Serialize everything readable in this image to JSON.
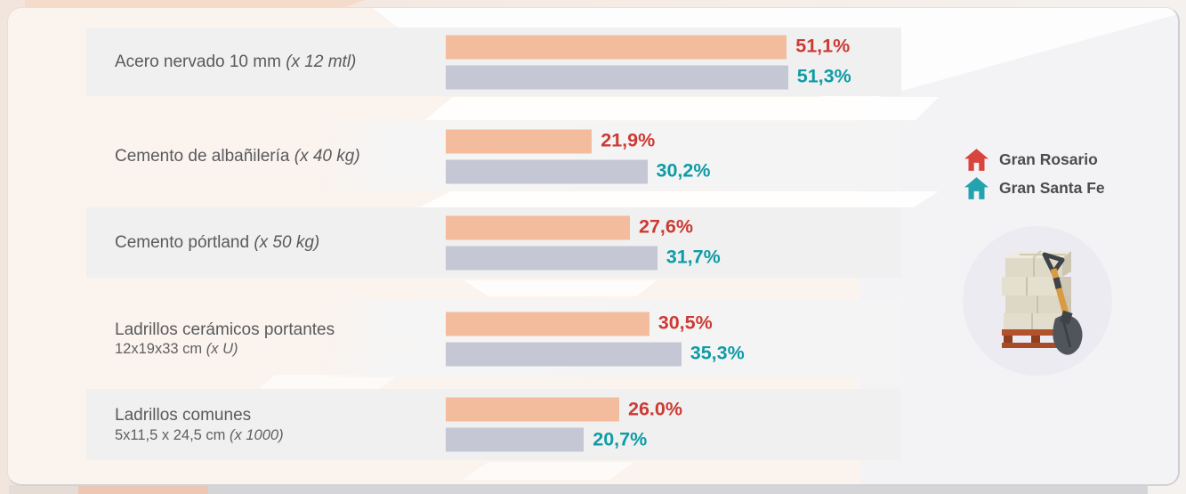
{
  "chart_data": {
    "type": "bar",
    "orientation": "horizontal",
    "title": "",
    "categories": [
      {
        "name": "Acero nervado 10 mm",
        "unit": "(x 12 mtl)",
        "size": "",
        "size_unit": ""
      },
      {
        "name": "Cemento de albañilería",
        "unit": "(x 40 kg)",
        "size": "",
        "size_unit": ""
      },
      {
        "name": "Cemento pórtland",
        "unit": "(x 50 kg)",
        "size": "",
        "size_unit": ""
      },
      {
        "name": "Ladrillos cerámicos portantes",
        "unit": "",
        "size": "12x19x33 cm",
        "size_unit": "(x U)"
      },
      {
        "name": "Ladrillos comunes",
        "unit": "",
        "size": "5x11,5 x 24,5 cm",
        "size_unit": "(x 1000)"
      }
    ],
    "series": [
      {
        "name": "Gran Rosario",
        "bar_color": "#F2BC9D",
        "value_color": "#CC3A34",
        "values": [
          51.1,
          21.9,
          27.6,
          30.5,
          26.0
        ],
        "labels": [
          "51,1%",
          "21,9%",
          "27,6%",
          "30,5%",
          "26.0%"
        ]
      },
      {
        "name": "Gran Santa Fe",
        "bar_color": "#C5C7D4",
        "value_color": "#0E9CA5",
        "values": [
          51.3,
          30.2,
          31.7,
          35.3,
          20.7
        ],
        "labels": [
          "51,3%",
          "30,2%",
          "31,7%",
          "35,3%",
          "20,7%"
        ]
      }
    ],
    "xlim": [
      0,
      55
    ],
    "grid": false,
    "legend_position": "right"
  },
  "legend": {
    "items": [
      {
        "label": "Gran Rosario",
        "icon": "house-icon",
        "color": "#D8453C"
      },
      {
        "label": "Gran Santa Fe",
        "icon": "house-icon",
        "color": "#23A3AE"
      }
    ]
  },
  "illustration": {
    "name": "pallet of construction material with shovel"
  }
}
